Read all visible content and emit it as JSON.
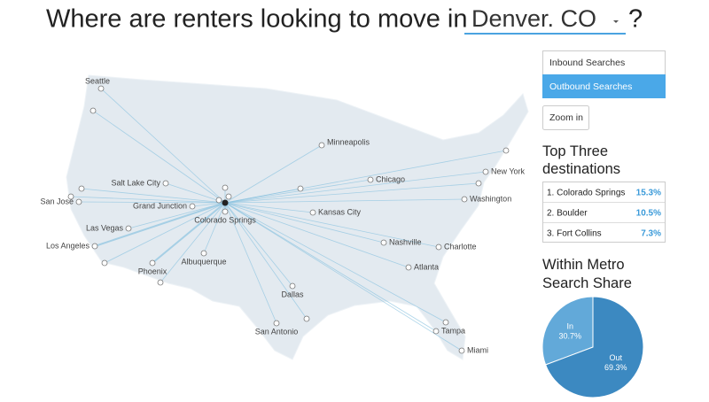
{
  "header": {
    "title": "Where are renters looking to move in",
    "location": "Denver. CO",
    "suffix": "?"
  },
  "controls": {
    "inbound": "Inbound Searches",
    "outbound": "Outbound Searches",
    "zoom": "Zoom in"
  },
  "map": {
    "cities": [
      "Seattle",
      "Minneapolis",
      "Salt Lake City",
      "Chicago",
      "New York",
      "San Jose",
      "Grand Junction",
      "Washington",
      "Kansas City",
      "Colorado Springs",
      "Las Vegas",
      "Nashville",
      "Charlotte",
      "Los Angeles",
      "Albuquerque",
      "Phoenix",
      "Atlanta",
      "Dallas",
      "San Antonio",
      "Tampa",
      "Miami"
    ]
  },
  "top_destinations": {
    "title": "Top Three destinations",
    "rows": [
      {
        "name": "1. Colorado Springs",
        "share": "15.3%"
      },
      {
        "name": "2. Boulder",
        "share": "10.5%"
      },
      {
        "name": "3. Fort Collins",
        "share": "7.3%"
      }
    ]
  },
  "metro_share": {
    "title": "Within Metro Search Share",
    "type": "pie",
    "categories": [
      "In",
      "Out"
    ],
    "values": [
      30.7,
      69.3
    ],
    "value_labels": [
      "30.7%",
      "69.3%"
    ],
    "colors": [
      "#62a9d9",
      "#3c89c1"
    ]
  }
}
